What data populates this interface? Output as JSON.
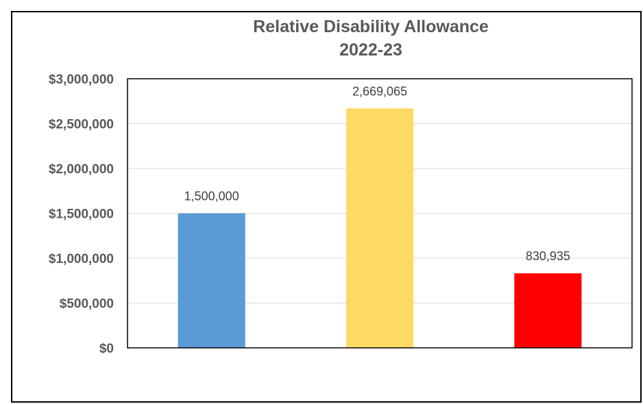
{
  "chart_data": {
    "type": "bar",
    "title": "Relative Disability Allowance",
    "subtitle": "2022-23",
    "xlabel": "",
    "ylabel": "",
    "categories": [
      "",
      "",
      ""
    ],
    "values": [
      1500000,
      2669065,
      830935
    ],
    "data_labels": [
      "1,500,000",
      "2,669,065",
      "830,935"
    ],
    "bar_colors": [
      "#5b9bd5",
      "#ffd966",
      "#ff0000"
    ],
    "ylim": [
      0,
      3000000
    ],
    "yticks": [
      0,
      500000,
      1000000,
      1500000,
      2000000,
      2500000,
      3000000
    ],
    "ytick_labels": [
      "$0",
      "$500,000",
      "$1,000,000",
      "$1,500,000",
      "$2,000,000",
      "$2,500,000",
      "$3,000,000"
    ],
    "grid": true,
    "legend": "none"
  }
}
